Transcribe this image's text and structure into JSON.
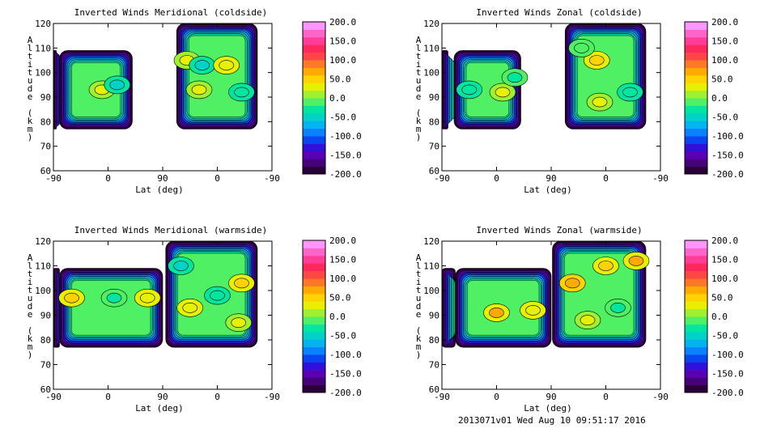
{
  "footer": "2013071v01 Wed Aug 10 09:51:17 2016",
  "shared": {
    "xlabel": "Lat (deg)",
    "ylabel": "Altitude (km)",
    "xticks": [
      "-90",
      "0",
      "90",
      "0",
      "-90"
    ],
    "yticks": [
      "60",
      "70",
      "80",
      "90",
      "100",
      "110",
      "120"
    ],
    "ylim": [
      60,
      120
    ],
    "colorbar": {
      "labels": [
        "200.0",
        "150.0",
        "100.0",
        "50.0",
        "0.0",
        "-50.0",
        "-100.0",
        "-150.0",
        "-200.0"
      ],
      "range": [
        -200,
        200
      ],
      "colors": [
        "#2a0038",
        "#46007a",
        "#5a00b4",
        "#3210dc",
        "#0a46f0",
        "#0a82ff",
        "#00b4f0",
        "#00d2c8",
        "#00e6a0",
        "#50f064",
        "#a0f032",
        "#e6f000",
        "#ffd200",
        "#ffaa00",
        "#ff7828",
        "#ff4646",
        "#ff285a",
        "#ff3c96",
        "#ff64c8",
        "#ff96ff"
      ]
    }
  },
  "chart_data": [
    {
      "type": "heatmap",
      "title": "Inverted Winds Meridional (coldside)",
      "xlabel": "Lat (deg)",
      "ylabel": "Altitude (km)",
      "ylim": [
        60,
        120
      ],
      "cbar_range": [
        -200,
        200
      ],
      "blocks": [
        {
          "x": [
            -90,
            -85
          ],
          "y": [
            77,
            109
          ]
        },
        {
          "x": [
            -80,
            40
          ],
          "y": [
            77,
            109
          ]
        },
        {
          "x": [
            113,
            246
          ],
          "y": [
            77,
            120
          ]
        }
      ],
      "features": [
        {
          "x": -10,
          "y": 93,
          "value": 30
        },
        {
          "x": 15,
          "y": 95,
          "value": -50
        },
        {
          "x": 130,
          "y": 105,
          "value": 20
        },
        {
          "x": 155,
          "y": 103,
          "value": -50
        },
        {
          "x": 195,
          "y": 103,
          "value": 35
        },
        {
          "x": 220,
          "y": 92,
          "value": -40
        },
        {
          "x": 150,
          "y": 93,
          "value": 25
        }
      ]
    },
    {
      "type": "heatmap",
      "title": "Inverted Winds Zonal (coldside)",
      "xlabel": "Lat (deg)",
      "ylabel": "Altitude (km)",
      "ylim": [
        60,
        120
      ],
      "cbar_range": [
        -200,
        200
      ],
      "blocks": [
        {
          "x": [
            -90,
            -80
          ],
          "y": [
            77,
            109
          ]
        },
        {
          "x": [
            -70,
            40
          ],
          "y": [
            77,
            109
          ]
        },
        {
          "x": [
            113,
            246
          ],
          "y": [
            77,
            120
          ]
        }
      ],
      "features": [
        {
          "x": -45,
          "y": 93,
          "value": -40
        },
        {
          "x": 10,
          "y": 92,
          "value": 30
        },
        {
          "x": 30,
          "y": 98,
          "value": -30
        },
        {
          "x": 165,
          "y": 105,
          "value": 45
        },
        {
          "x": 170,
          "y": 88,
          "value": 30
        },
        {
          "x": 220,
          "y": 92,
          "value": -40
        },
        {
          "x": 140,
          "y": 110,
          "value": -20
        }
      ]
    },
    {
      "type": "heatmap",
      "title": "Inverted Winds Meridional (warmside)",
      "xlabel": "Lat (deg)",
      "ylabel": "Altitude (km)",
      "ylim": [
        60,
        120
      ],
      "cbar_range": [
        -200,
        200
      ],
      "blocks": [
        {
          "x": [
            -90,
            -80
          ],
          "y": [
            77,
            109
          ]
        },
        {
          "x": [
            -80,
            90
          ],
          "y": [
            77,
            109
          ]
        },
        {
          "x": [
            95,
            246
          ],
          "y": [
            77,
            120
          ]
        }
      ],
      "features": [
        {
          "x": -60,
          "y": 97,
          "value": 40
        },
        {
          "x": 10,
          "y": 97,
          "value": -30
        },
        {
          "x": 65,
          "y": 97,
          "value": 35
        },
        {
          "x": 120,
          "y": 110,
          "value": -60
        },
        {
          "x": 135,
          "y": 93,
          "value": 35
        },
        {
          "x": 220,
          "y": 103,
          "value": 40
        },
        {
          "x": 215,
          "y": 87,
          "value": 30
        },
        {
          "x": 180,
          "y": 98,
          "value": -40
        }
      ]
    },
    {
      "type": "heatmap",
      "title": "Inverted Winds Zonal (warmside)",
      "xlabel": "Lat (deg)",
      "ylabel": "Altitude (km)",
      "ylim": [
        60,
        120
      ],
      "cbar_range": [
        -200,
        200
      ],
      "blocks": [
        {
          "x": [
            -90,
            -68
          ],
          "y": [
            77,
            109
          ]
        },
        {
          "x": [
            -68,
            90
          ],
          "y": [
            77,
            109
          ]
        },
        {
          "x": [
            92,
            246
          ],
          "y": [
            77,
            120
          ]
        }
      ],
      "features": [
        {
          "x": 0,
          "y": 91,
          "value": 60
        },
        {
          "x": 60,
          "y": 92,
          "value": 35
        },
        {
          "x": 125,
          "y": 103,
          "value": 70
        },
        {
          "x": 180,
          "y": 110,
          "value": 40
        },
        {
          "x": 200,
          "y": 93,
          "value": -30
        },
        {
          "x": 230,
          "y": 112,
          "value": 60
        },
        {
          "x": 150,
          "y": 88,
          "value": 20
        }
      ]
    }
  ]
}
